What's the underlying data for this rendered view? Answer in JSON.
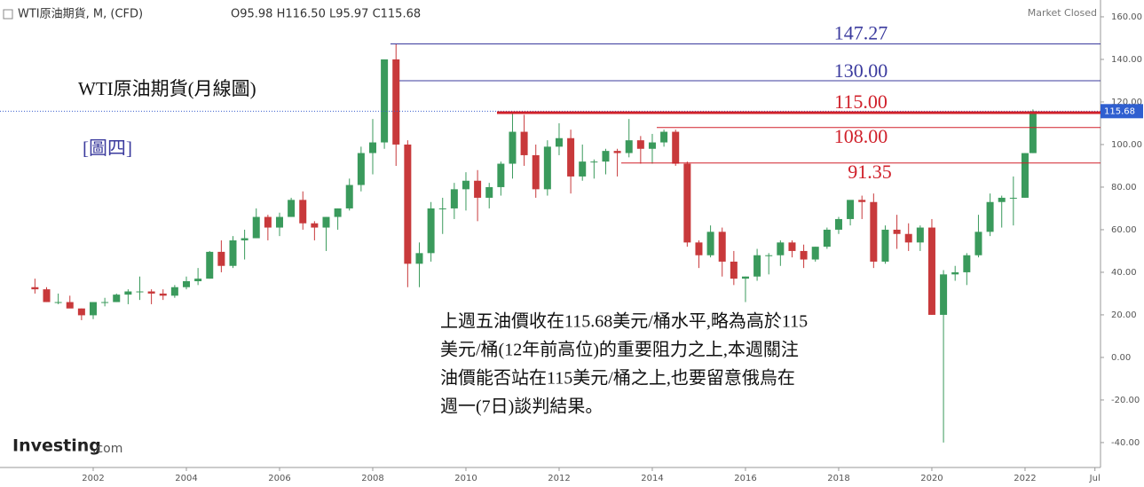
{
  "header": {
    "symbol": "WTI原油期貨, M, (CFD)",
    "ohlc": "O95.98 H116.50 L95.97 C115.68",
    "status": "Market Closed",
    "brand": "Investing",
    "brand_suffix": ".com"
  },
  "chart_data": {
    "type": "candlestick",
    "title": "WTI原油期貨(月線圖)",
    "subtitle": "[圖四]",
    "x": [
      2000.75,
      2001,
      2001.25,
      2001.5,
      2001.75,
      2002,
      2002.25,
      2002.5,
      2002.75,
      2003,
      2003.25,
      2003.5,
      2003.75,
      2004,
      2004.25,
      2004.5,
      2004.75,
      2005,
      2005.25,
      2005.5,
      2005.75,
      2006,
      2006.25,
      2006.5,
      2006.75,
      2007,
      2007.25,
      2007.5,
      2007.75,
      2008,
      2008.25,
      2008.5,
      2008.75,
      2009,
      2009.25,
      2009.5,
      2009.75,
      2010,
      2010.25,
      2010.5,
      2010.75,
      2011,
      2011.25,
      2011.5,
      2011.75,
      2012,
      2012.25,
      2012.5,
      2012.75,
      2013,
      2013.25,
      2013.5,
      2013.75,
      2014,
      2014.25,
      2014.5,
      2014.75,
      2015,
      2015.25,
      2015.5,
      2015.75,
      2016,
      2016.25,
      2016.5,
      2016.75,
      2017,
      2017.25,
      2017.5,
      2017.75,
      2018,
      2018.25,
      2018.5,
      2018.75,
      2019,
      2019.25,
      2019.5,
      2019.75,
      2020,
      2020.25,
      2020.5,
      2020.75,
      2021,
      2021.25,
      2021.5,
      2021.75,
      2022,
      2022.17
    ],
    "open": [
      33,
      32,
      26,
      26,
      23,
      19.8,
      26,
      26,
      29.5,
      31,
      31,
      30,
      29,
      33,
      35.8,
      37,
      49.6,
      43,
      55,
      56,
      66,
      61,
      66,
      74,
      63,
      61,
      66,
      70,
      81,
      96,
      101,
      140,
      100,
      44,
      49,
      70,
      70,
      79,
      83,
      75,
      80,
      91,
      106,
      95,
      79,
      99,
      103,
      85,
      92,
      92,
      97,
      96,
      102,
      98,
      101,
      106,
      91,
      54,
      48,
      59,
      45,
      37,
      38,
      48,
      48,
      54,
      50,
      46,
      52,
      60,
      65,
      74,
      73,
      45,
      60,
      58,
      54,
      61,
      20,
      39,
      40,
      48,
      59,
      73,
      75,
      75,
      95.98
    ],
    "high": [
      37,
      33,
      30,
      29,
      23,
      26,
      28,
      30,
      32,
      38,
      32,
      32,
      34,
      38,
      42,
      50,
      55,
      57,
      60,
      70,
      67,
      68,
      75,
      78,
      64,
      66,
      70,
      84,
      99,
      112,
      140,
      147.27,
      102,
      54,
      73,
      75,
      82,
      87,
      88,
      82,
      92,
      114.8,
      114,
      100,
      102,
      110,
      107,
      100,
      93,
      98,
      98,
      112,
      104,
      105,
      107,
      107,
      92,
      55,
      62,
      61,
      50,
      38,
      51,
      49,
      55,
      55,
      53,
      52,
      61,
      66,
      73,
      76,
      77,
      62,
      67,
      63,
      62,
      65,
      41,
      43,
      49,
      67,
      77,
      76,
      85,
      96,
      116.5
    ],
    "low": [
      30,
      26,
      25,
      24,
      17.5,
      18,
      24,
      26,
      25,
      27,
      25,
      27,
      28,
      32,
      34,
      37,
      40,
      42,
      46,
      56,
      55,
      57,
      66,
      60,
      55,
      50,
      60,
      69,
      78,
      86,
      98,
      90,
      33,
      33,
      45,
      58,
      65,
      69,
      64,
      70,
      76,
      84,
      90,
      75,
      76,
      95,
      77,
      83,
      84,
      86,
      85,
      94,
      91,
      91,
      99,
      90,
      52,
      42,
      47,
      38,
      34,
      26,
      36,
      39,
      43,
      47,
      42,
      45,
      51,
      58,
      62,
      65,
      42,
      44,
      51,
      50,
      50,
      20,
      -40,
      36,
      34,
      47,
      57,
      61,
      62,
      75,
      95.97
    ],
    "close": [
      32,
      26,
      26,
      23,
      19.8,
      26,
      26,
      29.5,
      31,
      31,
      30,
      29,
      33,
      35.8,
      37,
      49.6,
      43,
      55,
      56,
      66,
      61,
      66,
      74,
      63,
      61,
      66,
      70,
      81,
      96,
      101,
      140,
      100,
      44,
      49,
      70,
      70,
      79,
      83,
      75,
      80,
      91,
      106,
      95,
      79,
      99,
      103,
      85,
      92,
      92,
      97,
      96,
      102,
      98,
      101,
      106,
      91,
      54,
      48,
      59,
      45,
      37,
      38,
      48,
      48,
      54,
      50,
      46,
      52,
      60,
      65,
      74,
      73,
      45,
      60,
      58,
      54,
      61,
      20,
      39,
      40,
      48,
      59,
      73,
      75,
      75,
      95.98,
      115.68
    ],
    "up_color": "#3a9a5c",
    "down_color": "#c8393b",
    "xlim": [
      2000,
      2023.62
    ],
    "ylim": [
      -51.7,
      167.9
    ],
    "xticks": [
      2002,
      2004,
      2006,
      2008,
      2010,
      2012,
      2014,
      2016,
      2018,
      2020,
      2022,
      {
        "value": 2023.5,
        "label": "Jul"
      }
    ],
    "yticks": [
      {
        "value": -40,
        "label": "-40.00"
      },
      {
        "value": -20,
        "label": "-20.00"
      },
      {
        "value": 0,
        "label": "0.00"
      },
      {
        "value": 20,
        "label": "20.00"
      },
      {
        "value": 40,
        "label": "40.00"
      },
      {
        "value": 60,
        "label": "60.00"
      },
      {
        "value": 80,
        "label": "80.00"
      },
      {
        "value": 100,
        "label": "100.00"
      },
      {
        "value": 120,
        "label": "120.00"
      },
      {
        "value": 140,
        "label": "140.00"
      },
      {
        "value": 160,
        "label": "160.00"
      }
    ],
    "levels": [
      {
        "value": 147.27,
        "label": "147.27",
        "color": "#3b3b9e"
      },
      {
        "value": 130,
        "label": "130.00",
        "color": "#3b3b9e"
      },
      {
        "value": 115,
        "label": "115.00",
        "color": "#d0202a"
      },
      {
        "value": 108,
        "label": "108.00",
        "color": "#d0202a"
      },
      {
        "value": 91.35,
        "label": "91.35",
        "color": "#d0202a"
      }
    ],
    "note": [
      "上週五油價收在115.68美元/桶水平,略為高於115",
      "美元/桶(12年前高位)的重要阻力之上,本週關注",
      "油價能否站在115美元/桶之上,也要留意俄烏在",
      "週一(7日)談判結果。"
    ]
  }
}
